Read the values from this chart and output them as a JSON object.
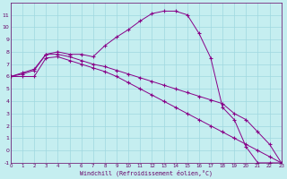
{
  "xlabel": "Windchill (Refroidissement éolien,°C)",
  "bg_color": "#c5eef0",
  "line_color": "#880088",
  "grid_color": "#9fd8e0",
  "xmin": 0,
  "xmax": 23,
  "ymin": -1,
  "ymax": 12,
  "series1_x": [
    0,
    1,
    2,
    3,
    4,
    5,
    6,
    7,
    8,
    9,
    10,
    11,
    12,
    13,
    14,
    15,
    16,
    17,
    18,
    19,
    20,
    21,
    22,
    23
  ],
  "series1_y": [
    6.0,
    6.3,
    6.6,
    7.8,
    8.0,
    7.8,
    7.8,
    7.6,
    8.5,
    9.2,
    9.8,
    10.5,
    11.1,
    11.3,
    11.3,
    11.0,
    9.5,
    7.5,
    3.5,
    2.5,
    0.3,
    -1.0,
    -1.0,
    -1.0
  ],
  "series2_x": [
    0,
    1,
    2,
    3,
    4,
    5,
    6,
    7,
    8,
    9,
    10,
    11,
    12,
    13,
    14,
    15,
    16,
    17,
    18,
    19,
    20,
    21,
    22,
    23
  ],
  "series2_y": [
    6.0,
    6.2,
    6.5,
    7.8,
    7.8,
    7.6,
    7.3,
    7.0,
    6.8,
    6.5,
    6.2,
    5.9,
    5.6,
    5.3,
    5.0,
    4.7,
    4.4,
    4.1,
    3.8,
    3.0,
    2.5,
    1.5,
    0.5,
    -1.0
  ],
  "series3_x": [
    0,
    1,
    2,
    3,
    4,
    5,
    6,
    7,
    8,
    9,
    10,
    11,
    12,
    13,
    14,
    15,
    16,
    17,
    18,
    19,
    20,
    21,
    22,
    23
  ],
  "series3_y": [
    6.0,
    6.0,
    6.0,
    7.5,
    7.6,
    7.3,
    7.0,
    6.7,
    6.4,
    6.0,
    5.5,
    5.0,
    4.5,
    4.0,
    3.5,
    3.0,
    2.5,
    2.0,
    1.5,
    1.0,
    0.5,
    0.0,
    -0.5,
    -1.0
  ]
}
